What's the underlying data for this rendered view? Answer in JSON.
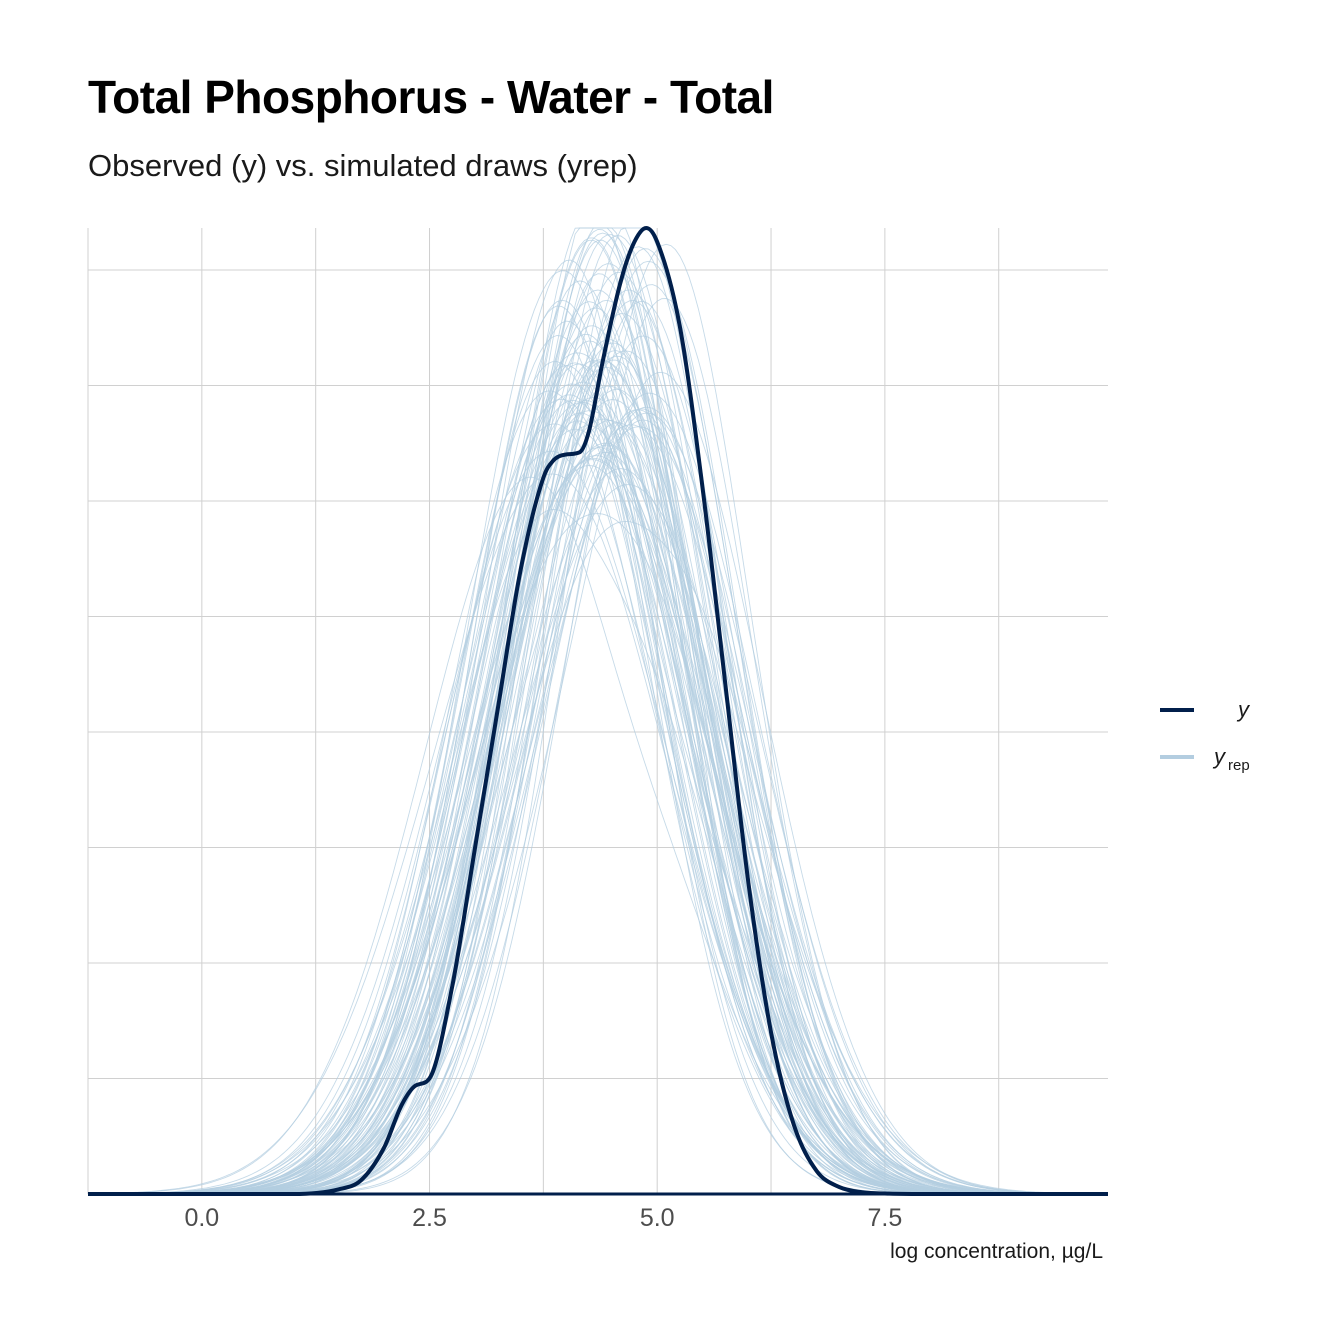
{
  "title": "Total Phosphorus - Water - Total",
  "subtitle": "Observed (y) vs. simulated draws (yrep)",
  "colors": {
    "y": "#011f4b",
    "yrep": "#b3cde0",
    "grid": "#d0d0d0"
  },
  "chart_data": {
    "type": "line",
    "title": "Total Phosphorus - Water - Total",
    "subtitle": "Observed (y) vs. simulated draws (yrep)",
    "xlabel": "log concentration, µg/L",
    "ylabel": "",
    "xlim": [
      -1.25,
      9.95
    ],
    "ylim": [
      0,
      0.418
    ],
    "x_ticks": [
      0.0,
      2.5,
      5.0,
      7.5
    ],
    "x_tick_labels": [
      "0.0",
      "2.5",
      "5.0",
      "7.5"
    ],
    "grid": true,
    "y_tick_labels_shown": false,
    "legend_position": "right",
    "legend": [
      {
        "key": "y",
        "label": "y",
        "sub": ""
      },
      {
        "key": "yrep",
        "label": "y",
        "sub": "rep"
      }
    ],
    "observed": {
      "name": "y",
      "x": [
        -1.25,
        0.0,
        1.0,
        1.5,
        1.75,
        2.0,
        2.2,
        2.35,
        2.5,
        2.75,
        3.0,
        3.25,
        3.5,
        3.75,
        3.85,
        4.0,
        4.15,
        4.25,
        4.4,
        4.6,
        4.75,
        4.88,
        5.0,
        5.25,
        5.5,
        5.75,
        6.0,
        6.25,
        6.5,
        6.75,
        7.0,
        7.25,
        7.5,
        8.0,
        9.95
      ],
      "y": [
        0.0,
        0.0,
        0.0,
        0.002,
        0.006,
        0.02,
        0.039,
        0.047,
        0.05,
        0.09,
        0.15,
        0.21,
        0.27,
        0.31,
        0.317,
        0.32,
        0.321,
        0.33,
        0.36,
        0.395,
        0.412,
        0.418,
        0.412,
        0.375,
        0.305,
        0.22,
        0.135,
        0.07,
        0.03,
        0.01,
        0.003,
        0.0008,
        0.0002,
        0.0,
        0.0
      ]
    },
    "yrep": {
      "name": "yrep",
      "draws": 100,
      "peak_location_range": [
        3.6,
        5.2
      ],
      "peak_density_range": [
        0.21,
        0.4
      ],
      "approx_sd_range": [
        0.95,
        1.3
      ]
    }
  }
}
